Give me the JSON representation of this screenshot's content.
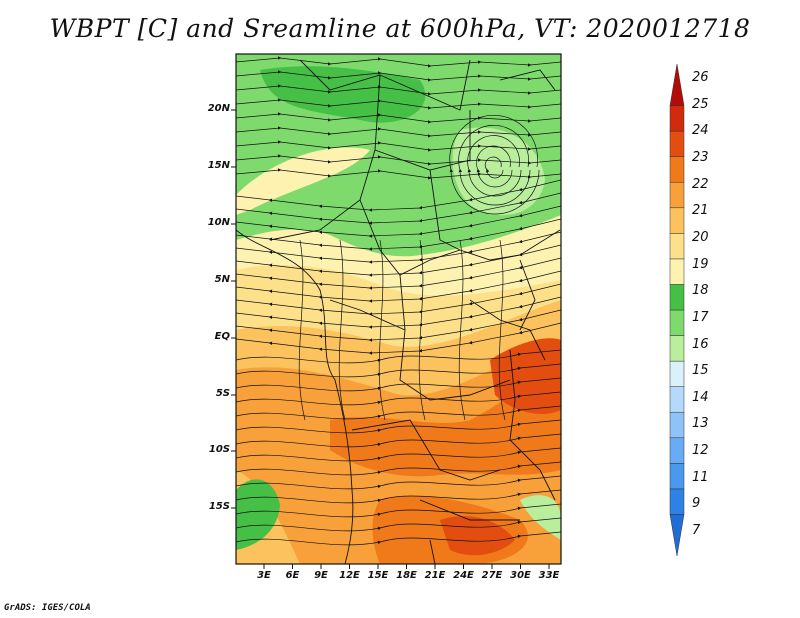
{
  "title": "WBPT [C] and Sreamline at 600hPa, VT: 2020012718",
  "credit": "GrADS: IGES/COLA",
  "map": {
    "lat_ticks": [
      "20N",
      "15N",
      "10N",
      "5N",
      "EQ",
      "5S",
      "10S",
      "15S"
    ],
    "lon_ticks": [
      "3E",
      "6E",
      "9E",
      "12E",
      "15E",
      "18E",
      "21E",
      "24E",
      "27E",
      "30E",
      "33E"
    ]
  },
  "colorbar": {
    "labels": [
      "7",
      "9",
      "11",
      "12",
      "13",
      "14",
      "15",
      "16",
      "17",
      "18",
      "19",
      "20",
      "21",
      "22",
      "23",
      "24",
      "25",
      "26"
    ],
    "colors": [
      "#1f6ed6",
      "#2e82e6",
      "#4b98ef",
      "#6aabf5",
      "#8fc3f8",
      "#b5d9fb",
      "#daf0fb",
      "#b9ee9d",
      "#7fda6e",
      "#45bf45",
      "#fdf2b0",
      "#fde08a",
      "#fbc25e",
      "#f8a13a",
      "#f07a1a",
      "#e44d10",
      "#d12a0c",
      "#b30a0a"
    ]
  },
  "colors": {
    "green_dark": "#45bf45",
    "green_mid": "#7fda6e",
    "green_light": "#b9ee9d",
    "yellow_light": "#fdf2b0",
    "yellow": "#fde08a",
    "orange_light": "#fbc25e",
    "orange": "#f8a13a",
    "orange_dark": "#f07a1a",
    "red_orange": "#e44d10"
  }
}
